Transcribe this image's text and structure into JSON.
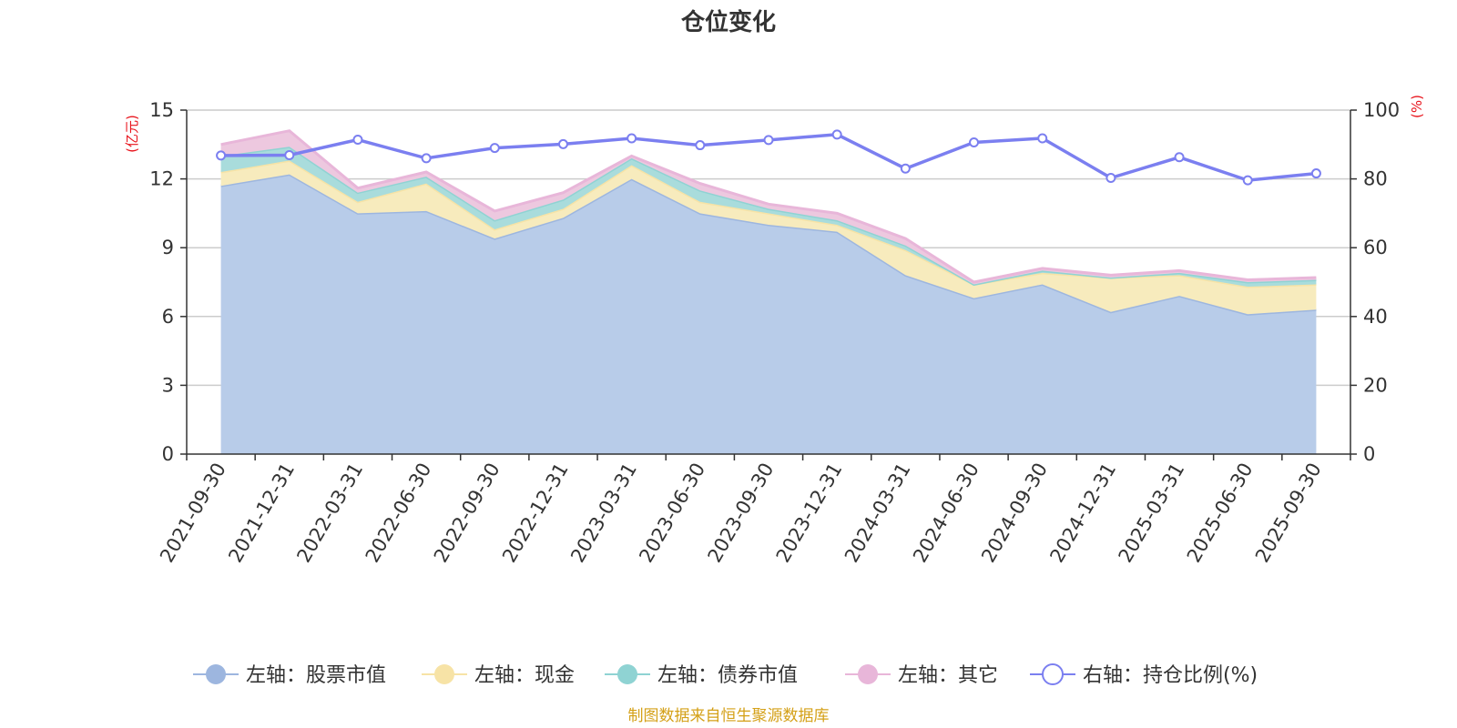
{
  "chart_data": {
    "type": "area",
    "title": "仓位变化",
    "left_axis": {
      "unit": "(亿元)",
      "ticks": [
        "0",
        "3",
        "6",
        "9",
        "12",
        "15"
      ],
      "ylim": [
        0,
        15
      ]
    },
    "right_axis": {
      "unit": "(%)",
      "ticks": [
        "0",
        "20",
        "40",
        "60",
        "80",
        "100"
      ],
      "ylim": [
        0,
        100
      ]
    },
    "categories": [
      "2021-09-30",
      "2021-12-31",
      "2022-03-31",
      "2022-06-30",
      "2022-09-30",
      "2022-12-31",
      "2023-03-31",
      "2023-06-30",
      "2023-09-30",
      "2023-12-31",
      "2024-03-31",
      "2024-06-30",
      "2024-09-30",
      "2024-12-31",
      "2025-03-31",
      "2025-06-30",
      "2025-09-30"
    ],
    "series": [
      {
        "name": "左轴：股票市值",
        "axis": "left",
        "stack": true,
        "color": "#9db6df",
        "fill": "#b8cce9",
        "values": [
          11.7,
          12.2,
          10.5,
          10.6,
          9.4,
          10.3,
          12.0,
          10.5,
          10.0,
          9.7,
          7.8,
          6.8,
          7.4,
          6.2,
          6.9,
          6.1,
          6.3
        ]
      },
      {
        "name": "左轴：现金",
        "axis": "left",
        "stack": true,
        "color": "#f7e3a6",
        "fill": "#f7ebbd",
        "values": [
          0.6,
          0.6,
          0.5,
          1.2,
          0.4,
          0.4,
          0.6,
          0.5,
          0.5,
          0.3,
          1.1,
          0.6,
          0.5,
          1.5,
          0.9,
          1.2,
          1.1
        ]
      },
      {
        "name": "左轴：债券市值",
        "axis": "left",
        "stack": true,
        "color": "#8fd3d3",
        "fill": "#a9dcdc",
        "values": [
          0.7,
          0.6,
          0.4,
          0.3,
          0.4,
          0.4,
          0.3,
          0.5,
          0.2,
          0.2,
          0.2,
          0.0,
          0.1,
          0.0,
          0.1,
          0.2,
          0.2
        ]
      },
      {
        "name": "左轴：其它",
        "axis": "left",
        "stack": true,
        "color": "#e8b6d9",
        "fill": "#edc8df",
        "values": [
          0.5,
          0.7,
          0.2,
          0.2,
          0.4,
          0.3,
          0.1,
          0.3,
          0.2,
          0.3,
          0.3,
          0.1,
          0.1,
          0.1,
          0.1,
          0.1,
          0.1
        ]
      },
      {
        "name": "右轴：持仓比例(%)",
        "axis": "right",
        "stack": false,
        "color": "#7b7ff0",
        "values": [
          86.8,
          86.9,
          91.4,
          86.0,
          89.0,
          90.1,
          91.8,
          89.8,
          91.3,
          92.9,
          83.0,
          90.6,
          91.8,
          80.3,
          86.3,
          79.6,
          81.6
        ]
      }
    ],
    "grid": true,
    "legend_position": "bottom"
  },
  "source_text": "制图数据来自恒生聚源数据库"
}
